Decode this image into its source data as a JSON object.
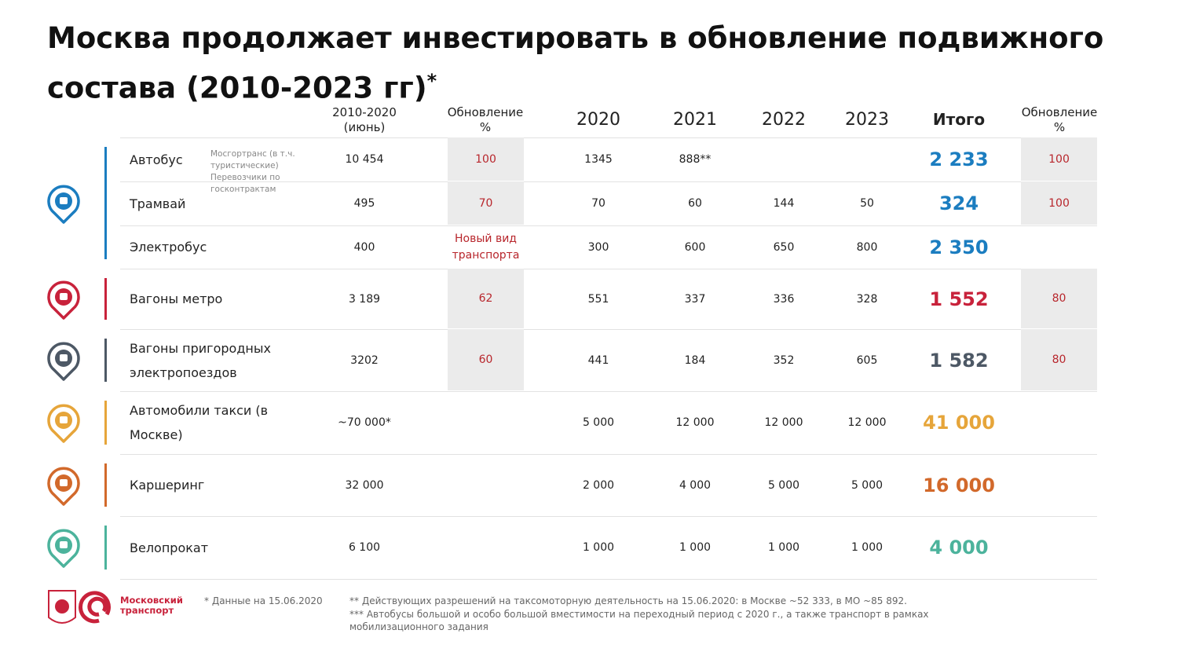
{
  "title": "Москва продолжает инвестировать в обновление подвижного состава (2010-2023 гг)",
  "title_mark": "*",
  "columns": [
    "2010-2020 (июнь)",
    "Обновление %",
    "2020",
    "2021",
    "2022",
    "2023",
    "Итого",
    "Обновление %"
  ],
  "groups": [
    {
      "color": "#1b7dc0",
      "rows": [
        {
          "name": "Автобус",
          "note": "Мосгортранс (в т.ч. туристические) Перевозчики по госконтрактам",
          "cells": [
            "10 454",
            "100",
            "1345",
            "888**",
            null,
            null,
            "2 233",
            "100"
          ]
        },
        {
          "name": "Трамвай",
          "cells": [
            "495",
            "70",
            "70",
            "60",
            "144",
            "50",
            "324",
            "100"
          ]
        },
        {
          "name": "Электробус",
          "cells": [
            "400",
            "Новый вид транспорта",
            "300",
            "600",
            "650",
            "800",
            "2 350",
            null
          ]
        }
      ]
    },
    {
      "color": "#c8223b",
      "rows": [
        {
          "name": "Вагоны метро",
          "cells": [
            "3 189",
            "62",
            "551",
            "337",
            "336",
            "328",
            "1 552",
            "80"
          ]
        }
      ]
    },
    {
      "color": "#4d5865",
      "rows": [
        {
          "name": "Вагоны пригородных электропоездов",
          "cells": [
            "3202",
            "60",
            "441",
            "184",
            "352",
            "605",
            "1 582",
            "80"
          ]
        }
      ]
    },
    {
      "color": "#e6a53a",
      "rows": [
        {
          "name": "Автомобили такси (в Москве)",
          "cells": [
            "~70 000*",
            null,
            "5 000",
            "12 000",
            "12 000",
            "12 000",
            "41 000",
            null
          ]
        }
      ]
    },
    {
      "color": "#d2692b",
      "rows": [
        {
          "name": "Каршеринг",
          "cells": [
            "32 000",
            null,
            "2 000",
            "4 000",
            "5 000",
            "5 000",
            "16 000",
            null
          ]
        }
      ]
    },
    {
      "color": "#4cb39c",
      "rows": [
        {
          "name": "Велопрокат",
          "cells": [
            "6 100",
            null,
            "1 000",
            "1 000",
            "1 000",
            "1 000",
            "4 000",
            null
          ]
        }
      ]
    }
  ],
  "footer": {
    "logo": "Московский транспорт",
    "notes": [
      "* Данные на 15.06.2020",
      "** Действующих разрешений на таксомоторную деятельность на 15.06.2020: в Москве ~52 333, в МО ~85 892.",
      "*** Автобусы большой и особо большой вместимости на переходный период с 2020 г., а также транспорт в рамках мобилизационного задания"
    ]
  }
}
